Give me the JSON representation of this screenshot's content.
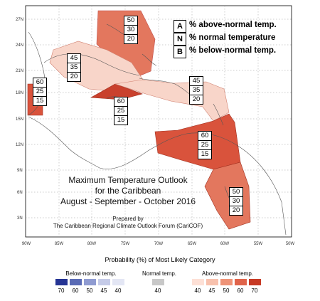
{
  "map": {
    "lat_labels": [
      "27N",
      "24N",
      "21N",
      "18N",
      "15N",
      "12N",
      "9N",
      "6N",
      "3N"
    ],
    "lon_labels": [
      "90W",
      "85W",
      "80W",
      "75W",
      "70W",
      "65W",
      "60W",
      "55W",
      "50W"
    ]
  },
  "key": [
    {
      "letter": "A",
      "text": "% above-normal temp."
    },
    {
      "letter": "N",
      "text": "% normal temperature"
    },
    {
      "letter": "B",
      "text": "% below-normal temp."
    }
  ],
  "regions": [
    {
      "id": "bahamas",
      "A": "50",
      "N": "30",
      "B": "20",
      "fill": "#e3775e"
    },
    {
      "id": "cuba",
      "A": "45",
      "N": "35",
      "B": "20",
      "fill": "#f8d5c9"
    },
    {
      "id": "belize",
      "A": "60",
      "N": "25",
      "B": "15",
      "fill": "#d9533c"
    },
    {
      "id": "jamaica",
      "A": "60",
      "N": "25",
      "B": "15",
      "fill": "#c9412d"
    },
    {
      "id": "eastern-caribbean",
      "A": "45",
      "N": "35",
      "B": "20",
      "fill": "#f8d5c9"
    },
    {
      "id": "southern-caribbean",
      "A": "60",
      "N": "25",
      "B": "15",
      "fill": "#d9533c"
    },
    {
      "id": "guianas",
      "A": "50",
      "N": "30",
      "B": "20",
      "fill": "#e3775e"
    }
  ],
  "title": {
    "line1": "Maximum Temperature Outlook",
    "line2": "for the Caribbean",
    "line3": "August - September - October 2016",
    "prepared1": "Prepared by",
    "prepared2": "The Caribbean Regional Climate Outlook Forum (CariCOF)"
  },
  "legend": {
    "title": "Probability (%) of Most Likely Category",
    "below_label": "Below-normal temp.",
    "normal_label": "Normal temp.",
    "above_label": "Above-normal temp.",
    "below_ticks": [
      "70",
      "60",
      "50",
      "45",
      "40"
    ],
    "normal_ticks": [
      "40"
    ],
    "above_ticks": [
      "40",
      "45",
      "50",
      "60",
      "70"
    ],
    "below_colors": [
      "#253494",
      "#5a6bb5",
      "#8f9bd1",
      "#c5cbe8",
      "#e3e6f4"
    ],
    "normal_color": "#c8c8c8",
    "above_colors": [
      "#fde0d6",
      "#f8c1ad",
      "#ef9478",
      "#e0644b",
      "#c73a25"
    ]
  }
}
